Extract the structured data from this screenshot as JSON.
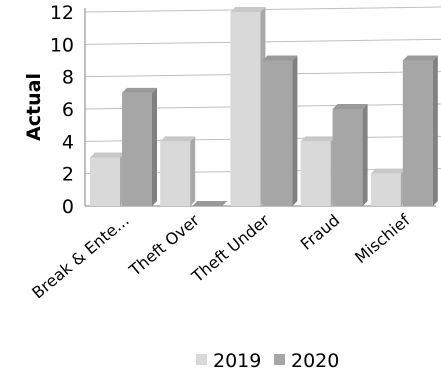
{
  "chart_data": {
    "type": "bar",
    "categories": [
      "Break & Ente...",
      "Theft Over",
      "Theft Under",
      "Fraud",
      "Mischief"
    ],
    "series": [
      {
        "name": "2019",
        "values": [
          3,
          4,
          12,
          4,
          2
        ],
        "color": "#d9d9d9"
      },
      {
        "name": "2020",
        "values": [
          7,
          0,
          9,
          6,
          9
        ],
        "color": "#a6a6a6"
      }
    ],
    "ylabel": "Actual",
    "ylim": [
      0,
      12
    ],
    "yticks": [
      0,
      2,
      4,
      6,
      8,
      10,
      12
    ],
    "grid": true,
    "legend": "bottom"
  }
}
